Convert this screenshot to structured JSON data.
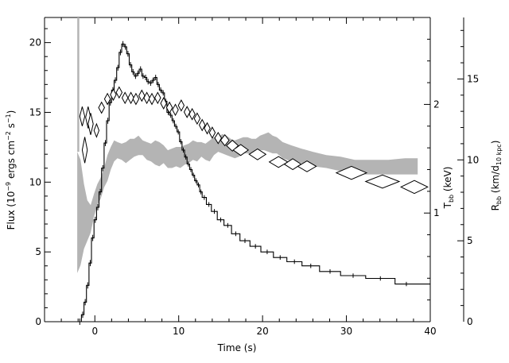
{
  "chart_data": {
    "type": "line",
    "xlabel": "Time (s)",
    "ylabel_left": {
      "main": "Flux (10",
      "sup1": "−9",
      "mid1": " ergs cm",
      "sup2": "−2",
      "mid2": " s",
      "sup3": "−1",
      "end": ")"
    },
    "ylabel_temp": {
      "main": "T",
      "sub": "bb",
      "end": " (keV)"
    },
    "ylabel_radius": {
      "main": "R",
      "sub1": "bb",
      "mid": " (km/d",
      "sub2": "10 kpc",
      "end": ")"
    },
    "xlim": [
      -6,
      40
    ],
    "ylim_left": [
      0,
      21.8
    ],
    "ylim_temp": [
      0,
      2.8
    ],
    "ylim_radius": [
      0,
      18.8
    ],
    "x_ticks": [
      0,
      10,
      20,
      30,
      40
    ],
    "y_left_ticks": [
      0,
      5,
      10,
      15,
      20
    ],
    "y_temp_ticks": [
      1,
      2
    ],
    "y_radius_ticks": [
      0,
      5,
      10,
      15
    ],
    "series": [
      {
        "kind": "flux-steps",
        "x": [
          -2.0,
          -1.6,
          -1.3,
          -1.0,
          -0.7,
          -0.4,
          -0.1,
          0.2,
          0.5,
          0.8,
          1.1,
          1.4,
          1.7,
          2.0,
          2.3,
          2.6,
          2.9,
          3.2,
          3.5,
          3.8,
          4.1,
          4.4,
          4.7,
          5.0,
          5.3,
          5.6,
          5.9,
          6.2,
          6.5,
          6.8,
          7.1,
          7.4,
          7.7,
          8.0,
          8.3,
          8.6,
          8.9,
          9.2,
          9.5,
          9.8,
          10.1,
          10.4,
          10.7,
          11.0,
          11.3,
          11.6,
          11.9,
          12.2,
          12.5,
          12.8,
          13.3,
          13.9,
          14.6,
          15.4,
          16.3,
          17.3,
          18.5,
          19.8,
          21.3,
          22.9,
          24.7,
          26.8,
          29.3,
          32.3,
          35.8,
          38.5
        ],
        "y": [
          0.0,
          0.5,
          1.4,
          2.6,
          4.2,
          6.0,
          7.3,
          8.2,
          9.3,
          11.0,
          12.8,
          14.4,
          15.7,
          16.6,
          17.3,
          18.2,
          19.3,
          19.9,
          19.7,
          19.2,
          18.4,
          17.9,
          17.6,
          17.8,
          18.1,
          17.6,
          17.5,
          17.2,
          17.1,
          17.3,
          17.5,
          17.0,
          16.6,
          16.4,
          15.8,
          15.0,
          14.8,
          14.4,
          14.0,
          13.6,
          12.9,
          12.3,
          11.8,
          11.3,
          10.9,
          10.5,
          10.1,
          9.8,
          9.3,
          8.9,
          8.4,
          7.9,
          7.3,
          6.9,
          6.3,
          5.8,
          5.4,
          5.0,
          4.6,
          4.3,
          4.0,
          3.6,
          3.3,
          3.1,
          2.7,
          2.7
        ]
      },
      {
        "kind": "radius-band",
        "x": [
          -2.1,
          -1.7,
          -1.3,
          -0.9,
          -0.5,
          -0.1,
          0.3,
          0.7,
          1.1,
          1.5,
          1.9,
          2.3,
          2.7,
          3.2,
          3.7,
          4.2,
          4.7,
          5.2,
          5.7,
          6.2,
          6.7,
          7.2,
          7.7,
          8.2,
          8.7,
          9.2,
          9.7,
          10.2,
          10.7,
          11.2,
          11.7,
          12.2,
          12.7,
          13.2,
          13.7,
          14.2,
          14.7,
          15.2,
          15.7,
          16.2,
          16.7,
          17.2,
          17.7,
          18.2,
          18.7,
          19.2,
          19.7,
          20.2,
          20.7,
          21.2,
          21.7,
          22.4,
          23.4,
          24.6,
          26.0,
          27.6,
          29.3,
          31.0,
          33.0,
          35.0,
          37.0,
          38.5
        ],
        "low": [
          3.0,
          3.5,
          4.5,
          5.0,
          5.5,
          6.5,
          7.2,
          7.6,
          8.3,
          8.7,
          9.4,
          9.9,
          10.1,
          10.0,
          9.8,
          10.0,
          10.2,
          10.3,
          10.3,
          10.0,
          9.9,
          9.7,
          9.6,
          9.8,
          9.5,
          9.5,
          9.6,
          9.5,
          9.7,
          9.8,
          10.0,
          9.9,
          10.2,
          10.0,
          9.9,
          10.3,
          10.5,
          10.4,
          10.3,
          10.2,
          10.1,
          10.2,
          10.4,
          10.4,
          10.3,
          10.3,
          10.6,
          10.6,
          10.5,
          10.4,
          10.4,
          10.1,
          9.9,
          9.8,
          9.6,
          9.5,
          9.3,
          9.1,
          9.1,
          9.1,
          9.1,
          9.1
        ],
        "high": [
          10.5,
          10.0,
          8.5,
          7.5,
          7.2,
          7.9,
          8.5,
          8.9,
          9.5,
          10.3,
          10.8,
          11.2,
          11.1,
          11.0,
          11.1,
          11.3,
          11.3,
          11.5,
          11.2,
          11.1,
          11.0,
          11.2,
          11.1,
          10.9,
          10.6,
          10.7,
          10.8,
          10.8,
          10.9,
          11.0,
          11.2,
          11.1,
          11.1,
          11.0,
          11.2,
          11.4,
          11.4,
          11.6,
          11.5,
          11.3,
          11.2,
          11.3,
          11.4,
          11.4,
          11.3,
          11.3,
          11.5,
          11.6,
          11.7,
          11.5,
          11.4,
          11.1,
          10.9,
          10.7,
          10.5,
          10.3,
          10.2,
          10.0,
          10.0,
          10.0,
          10.1,
          10.1
        ]
      },
      {
        "kind": "temperature-diamonds",
        "x": [
          -1.5,
          -1.2,
          -0.8,
          -0.5,
          0.2,
          0.8,
          1.5,
          2.2,
          2.9,
          3.6,
          4.3,
          4.9,
          5.6,
          6.2,
          6.8,
          7.5,
          8.2,
          8.9,
          9.6,
          10.3,
          11.0,
          11.6,
          12.2,
          12.8,
          13.4,
          14.0,
          14.7,
          15.5,
          16.4,
          17.4,
          19.4,
          21.9,
          23.6,
          25.3,
          30.6,
          34.3,
          38.1
        ],
        "y": [
          1.89,
          1.58,
          1.88,
          1.82,
          1.76,
          1.97,
          2.05,
          2.09,
          2.11,
          2.06,
          2.06,
          2.05,
          2.08,
          2.06,
          2.05,
          2.06,
          2.01,
          1.97,
          1.95,
          1.99,
          1.93,
          1.91,
          1.87,
          1.81,
          1.78,
          1.74,
          1.69,
          1.67,
          1.62,
          1.58,
          1.54,
          1.47,
          1.45,
          1.43,
          1.37,
          1.29,
          1.24
        ],
        "halfw": [
          0.3,
          0.3,
          0.3,
          0.3,
          0.3,
          0.35,
          0.35,
          0.35,
          0.35,
          0.35,
          0.35,
          0.35,
          0.35,
          0.35,
          0.35,
          0.35,
          0.35,
          0.35,
          0.35,
          0.35,
          0.35,
          0.35,
          0.35,
          0.35,
          0.35,
          0.35,
          0.4,
          0.5,
          0.7,
          0.9,
          1.0,
          1.1,
          1.0,
          1.1,
          1.8,
          2.0,
          1.6
        ],
        "halfh": [
          0.09,
          0.12,
          0.1,
          0.1,
          0.06,
          0.05,
          0.05,
          0.05,
          0.05,
          0.05,
          0.05,
          0.05,
          0.05,
          0.05,
          0.05,
          0.05,
          0.05,
          0.05,
          0.05,
          0.05,
          0.05,
          0.05,
          0.05,
          0.05,
          0.05,
          0.05,
          0.05,
          0.05,
          0.05,
          0.05,
          0.05,
          0.05,
          0.05,
          0.05,
          0.06,
          0.06,
          0.06
        ]
      }
    ]
  }
}
